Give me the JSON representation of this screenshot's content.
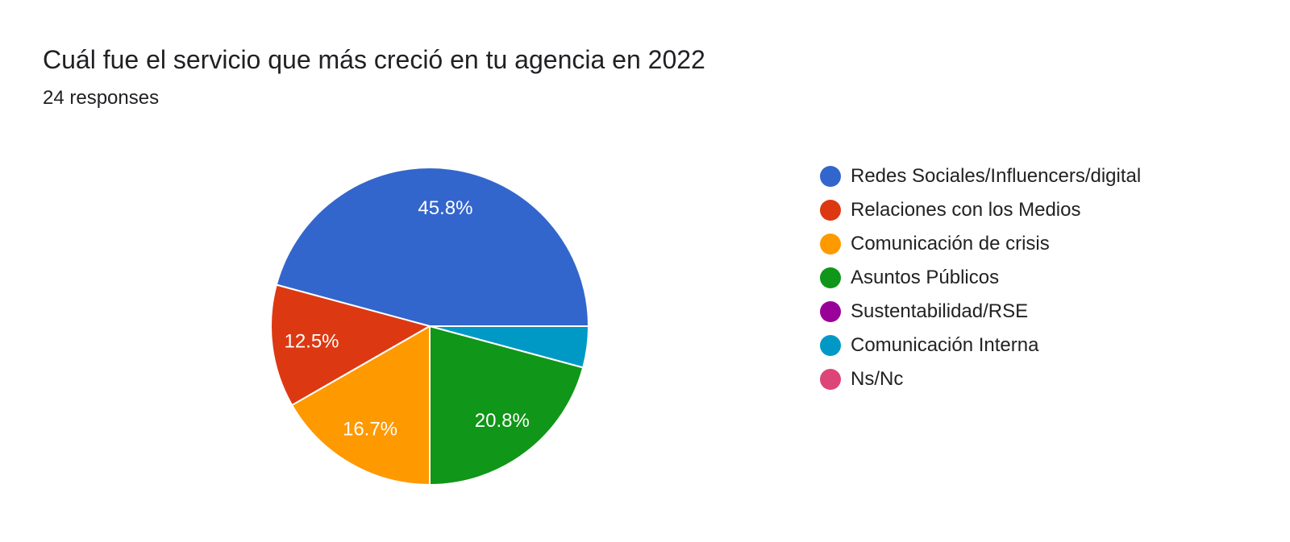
{
  "chart_data": {
    "type": "pie",
    "title": "Cuál fue el servicio que más creció en tu agencia en 2022",
    "subtitle": "24 responses",
    "legend_position": "right",
    "slices": [
      {
        "label": "Redes Sociales/Influencers/digital",
        "value": 45.8,
        "color": "#3366cc",
        "data_label": "45.8%"
      },
      {
        "label": "Relaciones con los Medios",
        "value": 12.5,
        "color": "#dc3912",
        "data_label": "12.5%"
      },
      {
        "label": "Comunicación de crisis",
        "value": 16.7,
        "color": "#ff9900",
        "data_label": "16.7%"
      },
      {
        "label": "Asuntos Públicos",
        "value": 20.8,
        "color": "#109618",
        "data_label": "20.8%"
      },
      {
        "label": "Sustentabilidad/RSE",
        "value": 0,
        "color": "#990099",
        "data_label": ""
      },
      {
        "label": "Comunicación Interna",
        "value": 4.2,
        "color": "#0099c6",
        "data_label": ""
      },
      {
        "label": "Ns/Nc",
        "value": 0,
        "color": "#dd4477",
        "data_label": ""
      }
    ]
  }
}
